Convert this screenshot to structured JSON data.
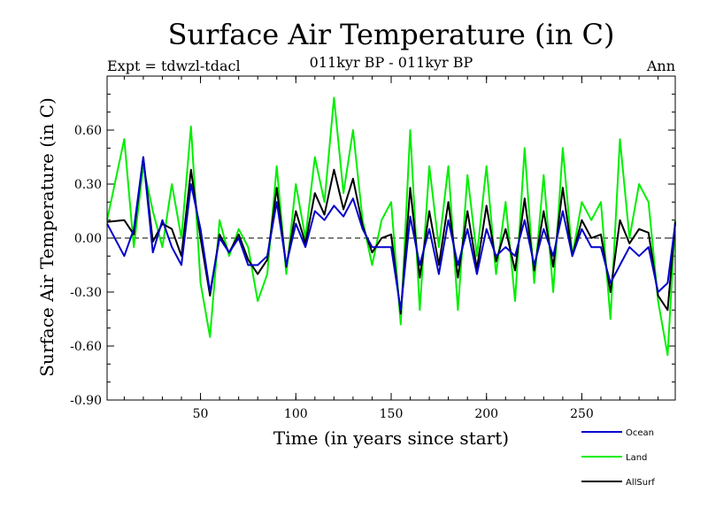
{
  "chart_data": {
    "type": "line",
    "title": "Surface Air Temperature (in C)",
    "subtitle": "011kyr BP - 011kyr BP",
    "left_label": "Expt = tdwzl-tdacl",
    "right_label": "Ann",
    "xlabel": "Time (in years since start)",
    "ylabel": "Surface Air Temperature (in C)",
    "xlim": [
      1,
      299
    ],
    "ylim": [
      -0.9,
      0.9
    ],
    "x_ticks": [
      50,
      100,
      150,
      200,
      250
    ],
    "y_ticks": [
      0.6,
      0.3,
      0.0,
      -0.3,
      -0.6,
      -0.9
    ],
    "y_tick_labels": [
      "0.60",
      "0.30",
      "0.00",
      "-0.30",
      "-0.60",
      "-0.90"
    ],
    "zero_line": "dashed",
    "legend_position": "bottom-right outside",
    "series": [
      {
        "name": "Ocean",
        "color": "#0000cc",
        "x": [
          1,
          10,
          15,
          20,
          25,
          30,
          35,
          40,
          45,
          50,
          55,
          60,
          65,
          70,
          75,
          80,
          85,
          90,
          95,
          100,
          105,
          110,
          115,
          120,
          125,
          130,
          135,
          140,
          145,
          150,
          155,
          160,
          165,
          170,
          175,
          180,
          185,
          190,
          195,
          200,
          205,
          210,
          215,
          220,
          225,
          230,
          235,
          240,
          245,
          250,
          255,
          260,
          265,
          270,
          275,
          280,
          285,
          290,
          295,
          299
        ],
        "y": [
          0.08,
          -0.1,
          0.05,
          0.45,
          -0.08,
          0.1,
          -0.05,
          -0.15,
          0.3,
          0.05,
          -0.3,
          0.0,
          -0.08,
          0.0,
          -0.15,
          -0.15,
          -0.1,
          0.2,
          -0.15,
          0.08,
          -0.05,
          0.15,
          0.1,
          0.18,
          0.12,
          0.22,
          0.05,
          -0.05,
          -0.05,
          -0.05,
          -0.4,
          0.12,
          -0.15,
          0.05,
          -0.2,
          0.1,
          -0.15,
          0.05,
          -0.2,
          0.05,
          -0.1,
          -0.05,
          -0.1,
          0.1,
          -0.15,
          0.05,
          -0.1,
          0.15,
          -0.1,
          0.05,
          -0.05,
          -0.05,
          -0.25,
          -0.15,
          -0.05,
          -0.1,
          -0.05,
          -0.3,
          -0.25,
          0.08
        ]
      },
      {
        "name": "Land",
        "color": "#00ee00",
        "x": [
          1,
          10,
          15,
          20,
          25,
          30,
          35,
          40,
          45,
          50,
          55,
          60,
          65,
          70,
          75,
          80,
          85,
          90,
          95,
          100,
          105,
          110,
          115,
          120,
          125,
          130,
          135,
          140,
          145,
          150,
          155,
          160,
          165,
          170,
          175,
          180,
          185,
          190,
          195,
          200,
          205,
          210,
          215,
          220,
          225,
          230,
          235,
          240,
          245,
          250,
          255,
          260,
          265,
          270,
          275,
          280,
          285,
          290,
          295,
          299
        ],
        "y": [
          0.1,
          0.55,
          -0.05,
          0.4,
          0.15,
          -0.05,
          0.3,
          0.0,
          0.62,
          -0.25,
          -0.55,
          0.1,
          -0.1,
          0.05,
          -0.05,
          -0.35,
          -0.2,
          0.4,
          -0.2,
          0.3,
          0.0,
          0.45,
          0.2,
          0.78,
          0.25,
          0.6,
          0.1,
          -0.15,
          0.1,
          0.2,
          -0.48,
          0.6,
          -0.4,
          0.4,
          -0.05,
          0.4,
          -0.4,
          0.35,
          -0.1,
          0.4,
          -0.2,
          0.2,
          -0.35,
          0.5,
          -0.25,
          0.35,
          -0.3,
          0.5,
          -0.1,
          0.2,
          0.1,
          0.2,
          -0.45,
          0.55,
          0.0,
          0.3,
          0.2,
          -0.35,
          -0.65,
          0.1
        ]
      },
      {
        "name": "AllSurf",
        "color": "#000000",
        "x": [
          1,
          10,
          15,
          20,
          25,
          30,
          35,
          40,
          45,
          50,
          55,
          60,
          65,
          70,
          75,
          80,
          85,
          90,
          95,
          100,
          105,
          110,
          115,
          120,
          125,
          130,
          135,
          140,
          145,
          150,
          155,
          160,
          165,
          170,
          175,
          180,
          185,
          190,
          195,
          200,
          205,
          210,
          215,
          220,
          225,
          230,
          235,
          240,
          245,
          250,
          255,
          260,
          265,
          270,
          275,
          280,
          285,
          290,
          295,
          299
        ],
        "y": [
          0.09,
          0.1,
          0.02,
          0.45,
          -0.02,
          0.08,
          0.05,
          -0.1,
          0.38,
          0.0,
          -0.32,
          0.02,
          -0.08,
          0.02,
          -0.12,
          -0.2,
          -0.12,
          0.28,
          -0.16,
          0.15,
          -0.03,
          0.25,
          0.13,
          0.38,
          0.16,
          0.33,
          0.07,
          -0.08,
          0.0,
          0.02,
          -0.42,
          0.28,
          -0.22,
          0.15,
          -0.15,
          0.2,
          -0.22,
          0.15,
          -0.17,
          0.18,
          -0.13,
          0.05,
          -0.18,
          0.22,
          -0.18,
          0.15,
          -0.16,
          0.28,
          -0.1,
          0.1,
          0.0,
          0.02,
          -0.3,
          0.1,
          -0.03,
          0.05,
          0.03,
          -0.32,
          -0.4,
          0.09
        ]
      }
    ]
  }
}
